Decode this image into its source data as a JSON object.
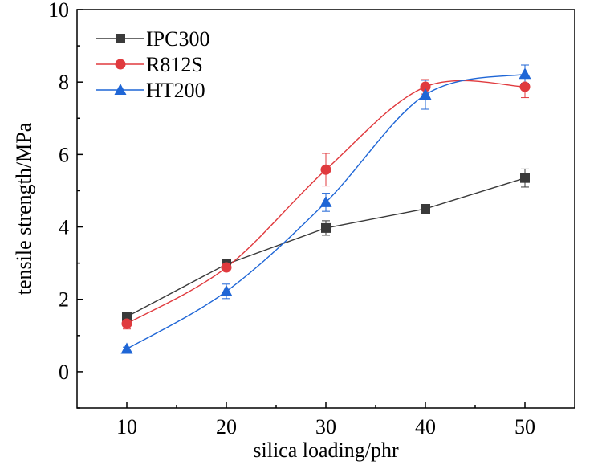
{
  "chart_data": {
    "type": "line",
    "xlabel": "silica loading/phr",
    "ylabel": "tensile strength/MPa",
    "xlim": [
      5,
      55
    ],
    "ylim": [
      -1,
      10
    ],
    "xticks": [
      10,
      20,
      30,
      40,
      50
    ],
    "yticks": [
      0,
      2,
      4,
      6,
      8,
      10
    ],
    "x": [
      10,
      20,
      30,
      40,
      50
    ],
    "legend_position": "top-left",
    "series": [
      {
        "name": "IPC300",
        "color": "#3a3a3a",
        "marker": "square",
        "values": [
          1.52,
          2.97,
          3.97,
          4.5,
          5.35
        ],
        "errors": [
          0.08,
          0.08,
          0.2,
          0.08,
          0.25
        ]
      },
      {
        "name": "R812S",
        "color": "#e03a3e",
        "marker": "circle",
        "values": [
          1.33,
          2.88,
          5.58,
          7.87,
          7.87
        ],
        "errors": [
          0.15,
          0.08,
          0.45,
          0.2,
          0.3
        ]
      },
      {
        "name": "HT200",
        "color": "#1f66d6",
        "marker": "triangle",
        "values": [
          0.63,
          2.22,
          4.68,
          7.65,
          8.22
        ],
        "errors": [
          0.05,
          0.2,
          0.25,
          0.4,
          0.25
        ]
      }
    ]
  }
}
